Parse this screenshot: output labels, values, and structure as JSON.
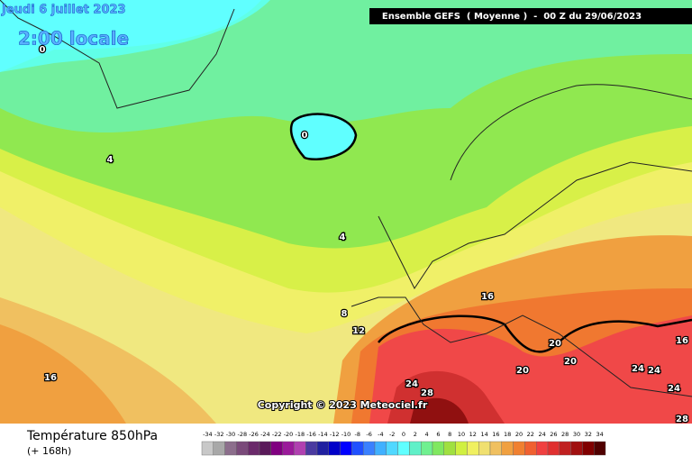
{
  "date_label": "Jeudi 6 juillet 2023",
  "time_label": "2:00 locale",
  "model_banner": "Ensemble GEFS  ( Moyenne )  -  00 Z du 29/06/2023",
  "copyright": "Copyright © 2023 Meteociel.fr",
  "parameter": "Température 850hPa",
  "lead": "(+ 168h)",
  "contour_labels": [
    0,
    4,
    0,
    4,
    8,
    12,
    16,
    16,
    20,
    20,
    20,
    24,
    28,
    24,
    24,
    24,
    16,
    28
  ],
  "scale": {
    "values": [
      -34,
      -32,
      -30,
      -28,
      -26,
      -24,
      -22,
      -20,
      -18,
      -16,
      -14,
      -12,
      -10,
      -8,
      -6,
      -4,
      -2,
      0,
      2,
      4,
      6,
      8,
      10,
      12,
      14,
      16,
      18,
      20,
      22,
      24,
      26,
      28,
      30,
      32,
      34
    ],
    "colors": [
      "#c8c8c8",
      "#a8a8a8",
      "#8c6e8c",
      "#7a4a7a",
      "#6a2a6a",
      "#5a1a5a",
      "#800080",
      "#9a1a9a",
      "#b040b0",
      "#4a3aa0",
      "#2020a0",
      "#0000c8",
      "#0000ff",
      "#2050ff",
      "#3a80ff",
      "#40b0ff",
      "#50d8ff",
      "#60ffff",
      "#60f0c8",
      "#70f090",
      "#80e860",
      "#a0e040",
      "#d0f040",
      "#f0f060",
      "#f0e070",
      "#f0c060",
      "#f0a040",
      "#f08030",
      "#f06030",
      "#f04040",
      "#e03030",
      "#c02020",
      "#a01010",
      "#800000",
      "#500000"
    ]
  }
}
